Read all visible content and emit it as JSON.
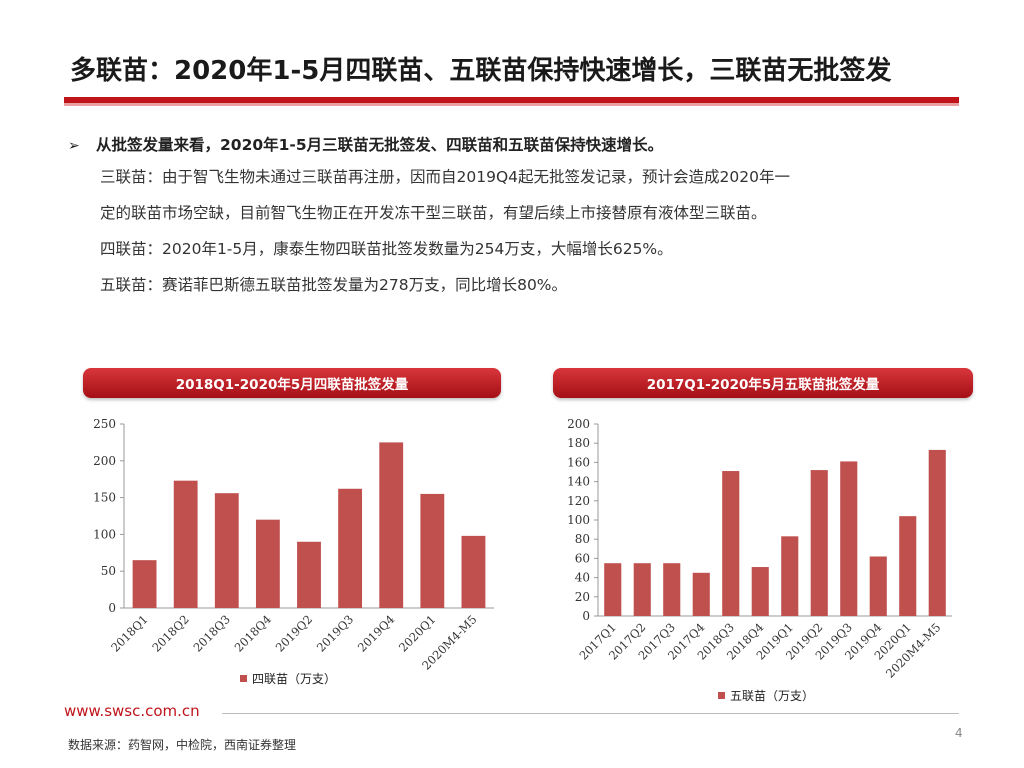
{
  "header": {
    "title": "多联苗：2020年1-5月四联苗、五联苗保持快速增长，三联苗无批签发"
  },
  "summary": {
    "bullet": "从批签发量来看，2020年1-5月三联苗无批签发、四联苗和五联苗保持快速增长。",
    "p1_line1": "三联苗：由于智飞生物未通过三联苗再注册，因而自2019Q4起无批签发记录，预计会造成2020年一",
    "p1_line2": "定的联苗市场空缺，目前智飞生物正在开发冻干型三联苗，有望后续上市接替原有液体型三联苗。",
    "p2": "四联苗：2020年1-5月，康泰生物四联苗批签发数量为254万支，大幅增长625%。",
    "p3": "五联苗：赛诺菲巴斯德五联苗批签发量为278万支，同比增长80%。"
  },
  "chart_data": [
    {
      "type": "bar",
      "title": "2018Q1-2020年5月四联苗批签发量",
      "categories": [
        "2018Q1",
        "2018Q2",
        "2018Q3",
        "2018Q4",
        "2019Q2",
        "2019Q3",
        "2019Q4",
        "2020Q1",
        "2020M4-M5"
      ],
      "series": [
        {
          "name": "四联苗（万支）",
          "values": [
            65,
            173,
            156,
            120,
            90,
            162,
            225,
            155,
            98
          ]
        }
      ],
      "ylim": [
        0,
        250
      ],
      "yticks": [
        0,
        50,
        100,
        150,
        200,
        250
      ],
      "grid": false,
      "legend": "bottom",
      "color": "#c0504d"
    },
    {
      "type": "bar",
      "title": "2017Q1-2020年5月五联苗批签发量",
      "categories": [
        "2017Q1",
        "2017Q2",
        "2017Q3",
        "2017Q4",
        "2018Q3",
        "2018Q4",
        "2019Q1",
        "2019Q2",
        "2019Q3",
        "2019Q4",
        "2020Q1",
        "2020M4-M5"
      ],
      "series": [
        {
          "name": "五联苗（万支）",
          "values": [
            55,
            55,
            55,
            45,
            151,
            51,
            83,
            152,
            161,
            62,
            104,
            173
          ]
        }
      ],
      "ylim": [
        0,
        200
      ],
      "yticks": [
        0,
        20,
        40,
        60,
        80,
        100,
        120,
        140,
        160,
        180,
        200
      ],
      "grid": false,
      "legend": "bottom",
      "color": "#c0504d"
    }
  ],
  "footer": {
    "url": "www.swsc.com.cn",
    "page": "4",
    "source": "数据来源：药智网，中检院，西南证券整理"
  }
}
